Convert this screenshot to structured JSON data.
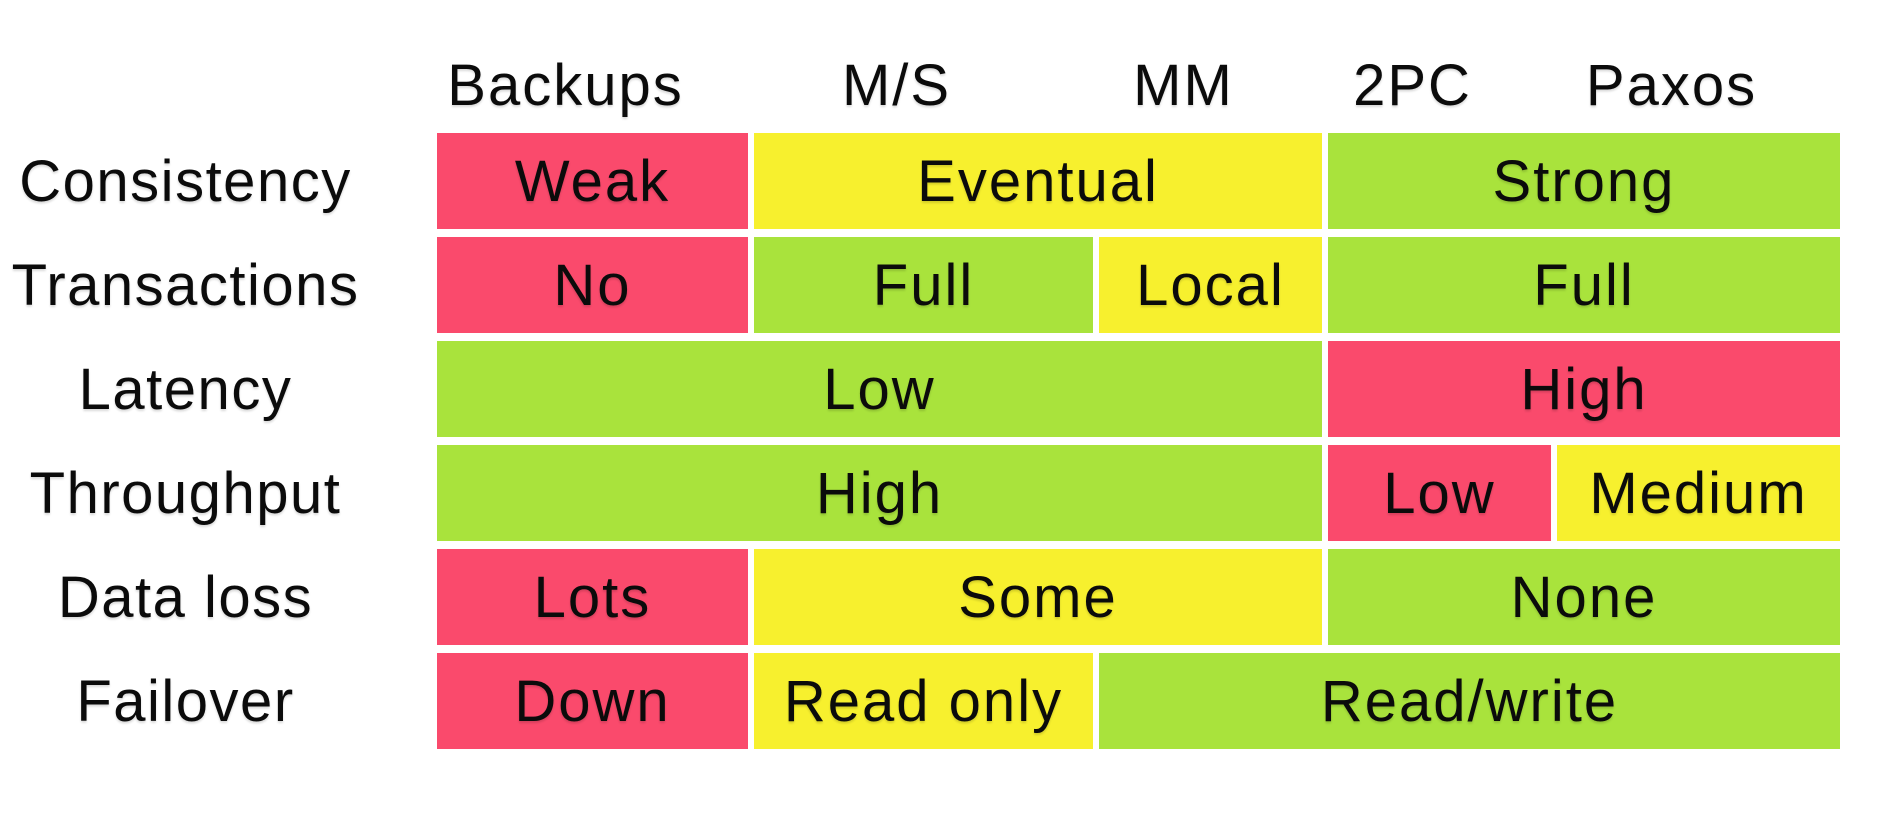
{
  "colors": {
    "good": "#A9E33C",
    "medium": "#F7F02E",
    "bad": "#FA4A6C",
    "text": "#0B0B0B",
    "background": "#FFFFFF"
  },
  "chart_data": {
    "type": "table",
    "columns": [
      "Backups",
      "M/S",
      "MM",
      "2PC",
      "Paxos"
    ],
    "rows": [
      "Consistency",
      "Transactions",
      "Latency",
      "Throughput",
      "Data loss",
      "Failover"
    ],
    "legend": {
      "good": "green",
      "medium": "yellow",
      "bad": "red"
    },
    "cells": [
      {
        "row": "Consistency",
        "label": "Weak",
        "level": "bad",
        "col_start": 1,
        "col_span": 1
      },
      {
        "row": "Consistency",
        "label": "Eventual",
        "level": "medium",
        "col_start": 2,
        "col_span": 2
      },
      {
        "row": "Consistency",
        "label": "Strong",
        "level": "good",
        "col_start": 4,
        "col_span": 2
      },
      {
        "row": "Transactions",
        "label": "No",
        "level": "bad",
        "col_start": 1,
        "col_span": 1
      },
      {
        "row": "Transactions",
        "label": "Full",
        "level": "good",
        "col_start": 2,
        "col_span": 1
      },
      {
        "row": "Transactions",
        "label": "Local",
        "level": "medium",
        "col_start": 3,
        "col_span": 1
      },
      {
        "row": "Transactions",
        "label": "Full",
        "level": "good",
        "col_start": 4,
        "col_span": 2
      },
      {
        "row": "Latency",
        "label": "Low",
        "level": "good",
        "col_start": 1,
        "col_span": 3
      },
      {
        "row": "Latency",
        "label": "High",
        "level": "bad",
        "col_start": 4,
        "col_span": 2
      },
      {
        "row": "Throughput",
        "label": "High",
        "level": "good",
        "col_start": 1,
        "col_span": 3
      },
      {
        "row": "Throughput",
        "label": "Low",
        "level": "bad",
        "col_start": 4,
        "col_span": 1
      },
      {
        "row": "Throughput",
        "label": "Medium",
        "level": "medium",
        "col_start": 5,
        "col_span": 1
      },
      {
        "row": "Data loss",
        "label": "Lots",
        "level": "bad",
        "col_start": 1,
        "col_span": 1
      },
      {
        "row": "Data loss",
        "label": "Some",
        "level": "medium",
        "col_start": 2,
        "col_span": 2
      },
      {
        "row": "Data loss",
        "label": "None",
        "level": "good",
        "col_start": 4,
        "col_span": 2
      },
      {
        "row": "Failover",
        "label": "Down",
        "level": "bad",
        "col_start": 1,
        "col_span": 1
      },
      {
        "row": "Failover",
        "label": "Read only",
        "level": "medium",
        "col_start": 2,
        "col_span": 1
      },
      {
        "row": "Failover",
        "label": "Read/write",
        "level": "good",
        "col_start": 3,
        "col_span": 3
      }
    ]
  }
}
